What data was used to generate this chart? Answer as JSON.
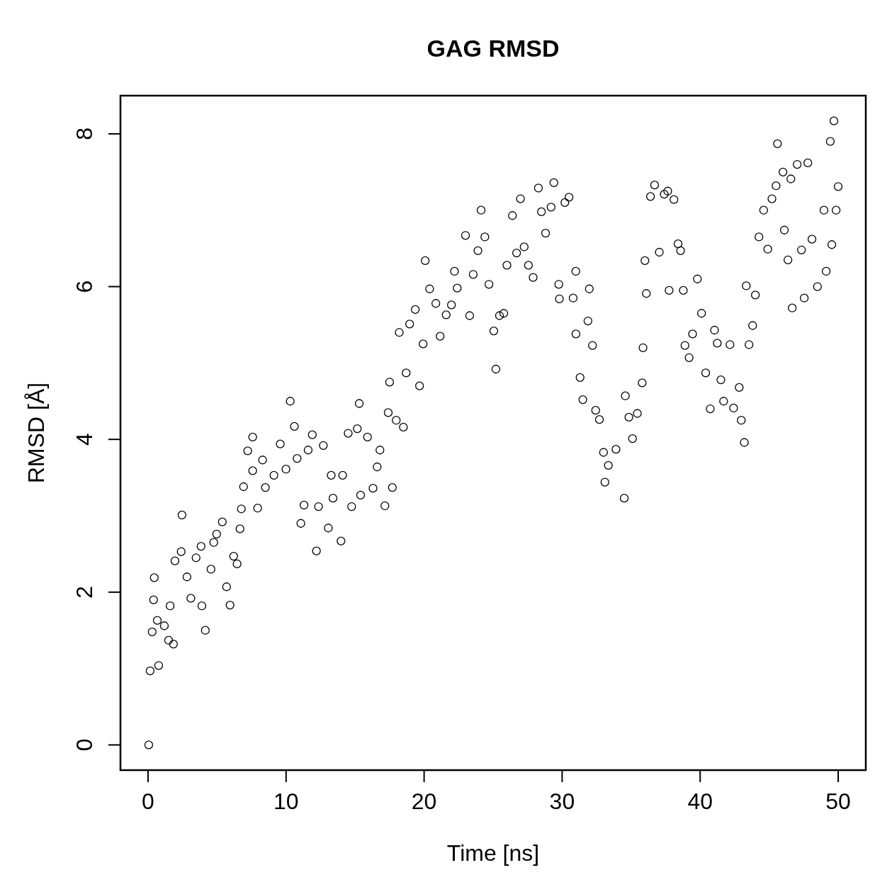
{
  "chart_data": {
    "type": "scatter",
    "title": "GAG RMSD",
    "xlabel": "Time [ns]",
    "ylabel": "RMSD [Å]",
    "xlim": [
      -2,
      52
    ],
    "ylim": [
      -0.33,
      8.5
    ],
    "xticks": [
      0,
      10,
      20,
      30,
      40,
      50
    ],
    "yticks": [
      0,
      2,
      4,
      6,
      8
    ],
    "marker": "circle",
    "series": [
      {
        "color": "#000000",
        "x": [
          0.05,
          0.15,
          0.3,
          0.4,
          0.45,
          0.77,
          0.67,
          1.18,
          1.49,
          1.6,
          1.84,
          1.95,
          2.4,
          2.46,
          2.82,
          3.1,
          3.48,
          3.84,
          4.15,
          3.9,
          4.56,
          4.76,
          4.97,
          5.38,
          5.69,
          5.94,
          6.2,
          6.45,
          6.66,
          6.76,
          6.92,
          7.22,
          7.58,
          7.58,
          7.94,
          8.3,
          8.5,
          9.12,
          9.58,
          9.99,
          10.3,
          10.6,
          10.8,
          11.07,
          11.3,
          11.6,
          11.9,
          12.2,
          12.35,
          12.7,
          13.06,
          13.27,
          13.4,
          13.98,
          14.1,
          14.5,
          14.75,
          15.16,
          15.3,
          15.4,
          15.9,
          16.3,
          16.6,
          16.8,
          17.16,
          17.4,
          17.5,
          17.7,
          17.98,
          18.2,
          18.5,
          18.7,
          18.95,
          19.36,
          19.67,
          19.93,
          20.08,
          20.4,
          20.85,
          21.16,
          21.6,
          21.98,
          22.2,
          22.4,
          23.0,
          23.3,
          23.56,
          23.9,
          24.13,
          24.4,
          24.7,
          25.05,
          25.2,
          25.46,
          25.77,
          26.0,
          26.4,
          26.7,
          26.98,
          27.25,
          27.56,
          27.9,
          28.28,
          28.5,
          28.8,
          29.2,
          29.4,
          29.76,
          29.8,
          30.2,
          30.5,
          30.8,
          30.99,
          31.0,
          31.3,
          31.5,
          31.87,
          31.97,
          32.2,
          32.43,
          32.7,
          33.0,
          33.1,
          33.35,
          33.9,
          34.5,
          34.58,
          34.84,
          35.1,
          35.45,
          35.8,
          35.86,
          36.0,
          36.1,
          36.4,
          36.7,
          37.04,
          37.4,
          37.65,
          37.75,
          38.1,
          38.4,
          38.58,
          38.78,
          38.9,
          39.2,
          39.45,
          39.8,
          40.1,
          40.4,
          40.73,
          41.04,
          41.24,
          41.5,
          41.7,
          42.16,
          42.42,
          42.83,
          42.98,
          43.2,
          43.34,
          43.54,
          43.8,
          44.0,
          44.26,
          44.6,
          44.9,
          45.2,
          45.5,
          45.6,
          46.0,
          46.1,
          46.36,
          46.57,
          46.67,
          47.03,
          47.34,
          47.54,
          47.8,
          48.1,
          48.5,
          48.97,
          49.13,
          49.43,
          49.54,
          49.69,
          49.85,
          50.0
        ],
        "values": [
          0,
          0.97,
          1.48,
          1.9,
          2.19,
          1.04,
          1.63,
          1.56,
          1.37,
          1.82,
          1.32,
          2.41,
          2.53,
          3.01,
          2.2,
          1.92,
          2.45,
          2.6,
          1.5,
          1.82,
          2.3,
          2.65,
          2.76,
          2.92,
          2.07,
          1.83,
          2.47,
          2.37,
          2.83,
          3.09,
          3.38,
          3.85,
          4.03,
          3.59,
          3.1,
          3.73,
          3.37,
          3.53,
          3.94,
          3.61,
          4.5,
          4.17,
          3.75,
          2.9,
          3.14,
          3.86,
          4.06,
          2.54,
          3.12,
          3.92,
          2.84,
          3.53,
          3.23,
          2.67,
          3.53,
          4.08,
          3.12,
          4.14,
          4.47,
          3.27,
          4.03,
          3.36,
          3.64,
          3.86,
          3.13,
          4.35,
          4.75,
          3.37,
          4.25,
          5.4,
          4.16,
          4.87,
          5.51,
          5.7,
          4.7,
          5.25,
          6.34,
          5.97,
          5.78,
          5.35,
          5.63,
          5.76,
          6.2,
          5.98,
          6.67,
          5.62,
          6.16,
          6.47,
          7.0,
          6.65,
          6.03,
          5.42,
          4.92,
          5.62,
          5.65,
          6.28,
          6.93,
          6.44,
          7.15,
          6.52,
          6.28,
          6.12,
          7.29,
          6.98,
          6.7,
          7.04,
          7.36,
          6.03,
          5.84,
          7.1,
          7.17,
          5.85,
          6.2,
          5.38,
          4.81,
          4.52,
          5.55,
          5.97,
          5.23,
          4.38,
          4.26,
          3.83,
          3.44,
          3.66,
          3.87,
          3.23,
          4.57,
          4.29,
          4.01,
          4.34,
          4.74,
          5.2,
          6.34,
          5.91,
          7.18,
          7.33,
          6.45,
          7.21,
          7.25,
          5.95,
          7.14,
          6.56,
          6.47,
          5.95,
          5.23,
          5.07,
          5.38,
          6.1,
          5.65,
          4.87,
          4.4,
          5.43,
          5.26,
          4.78,
          4.5,
          5.24,
          4.41,
          4.68,
          4.25,
          3.96,
          6.01,
          5.24,
          5.49,
          5.89,
          6.65,
          7.0,
          6.49,
          7.15,
          7.32,
          7.87,
          7.5,
          6.74,
          6.35,
          7.41,
          5.72,
          7.6,
          6.48,
          5.85,
          7.62,
          6.62,
          6.0,
          7.0,
          6.2,
          7.9,
          6.55,
          8.17,
          7.0,
          7.31
        ]
      }
    ]
  }
}
